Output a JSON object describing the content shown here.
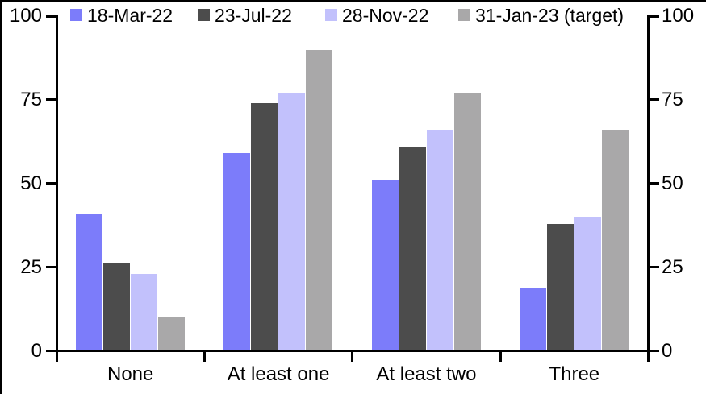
{
  "chart_data": {
    "type": "bar",
    "title": "",
    "categories": [
      "None",
      "At least one",
      "At least two",
      "Three"
    ],
    "series": [
      {
        "name": "18-Mar-22",
        "color": "#7C7CFA",
        "values": [
          41,
          59,
          51,
          19
        ]
      },
      {
        "name": "23-Jul-22",
        "color": "#4C4C4C",
        "values": [
          26,
          74,
          61,
          38
        ]
      },
      {
        "name": "28-Nov-22",
        "color": "#C2C1FC",
        "values": [
          23,
          77,
          66,
          40
        ]
      },
      {
        "name": "31-Jan-23 (target)",
        "color": "#A9A8A9",
        "values": [
          10,
          90,
          77,
          66
        ]
      }
    ],
    "xlabel": "",
    "ylabel": "",
    "ylim": [
      0,
      100
    ],
    "yticks": [
      0,
      25,
      50,
      75,
      100
    ],
    "dual_axis": true,
    "grid": false,
    "legend_position": "top",
    "axis_color": "#000000",
    "background_color": "#ffffff",
    "border_color": "#000000"
  }
}
